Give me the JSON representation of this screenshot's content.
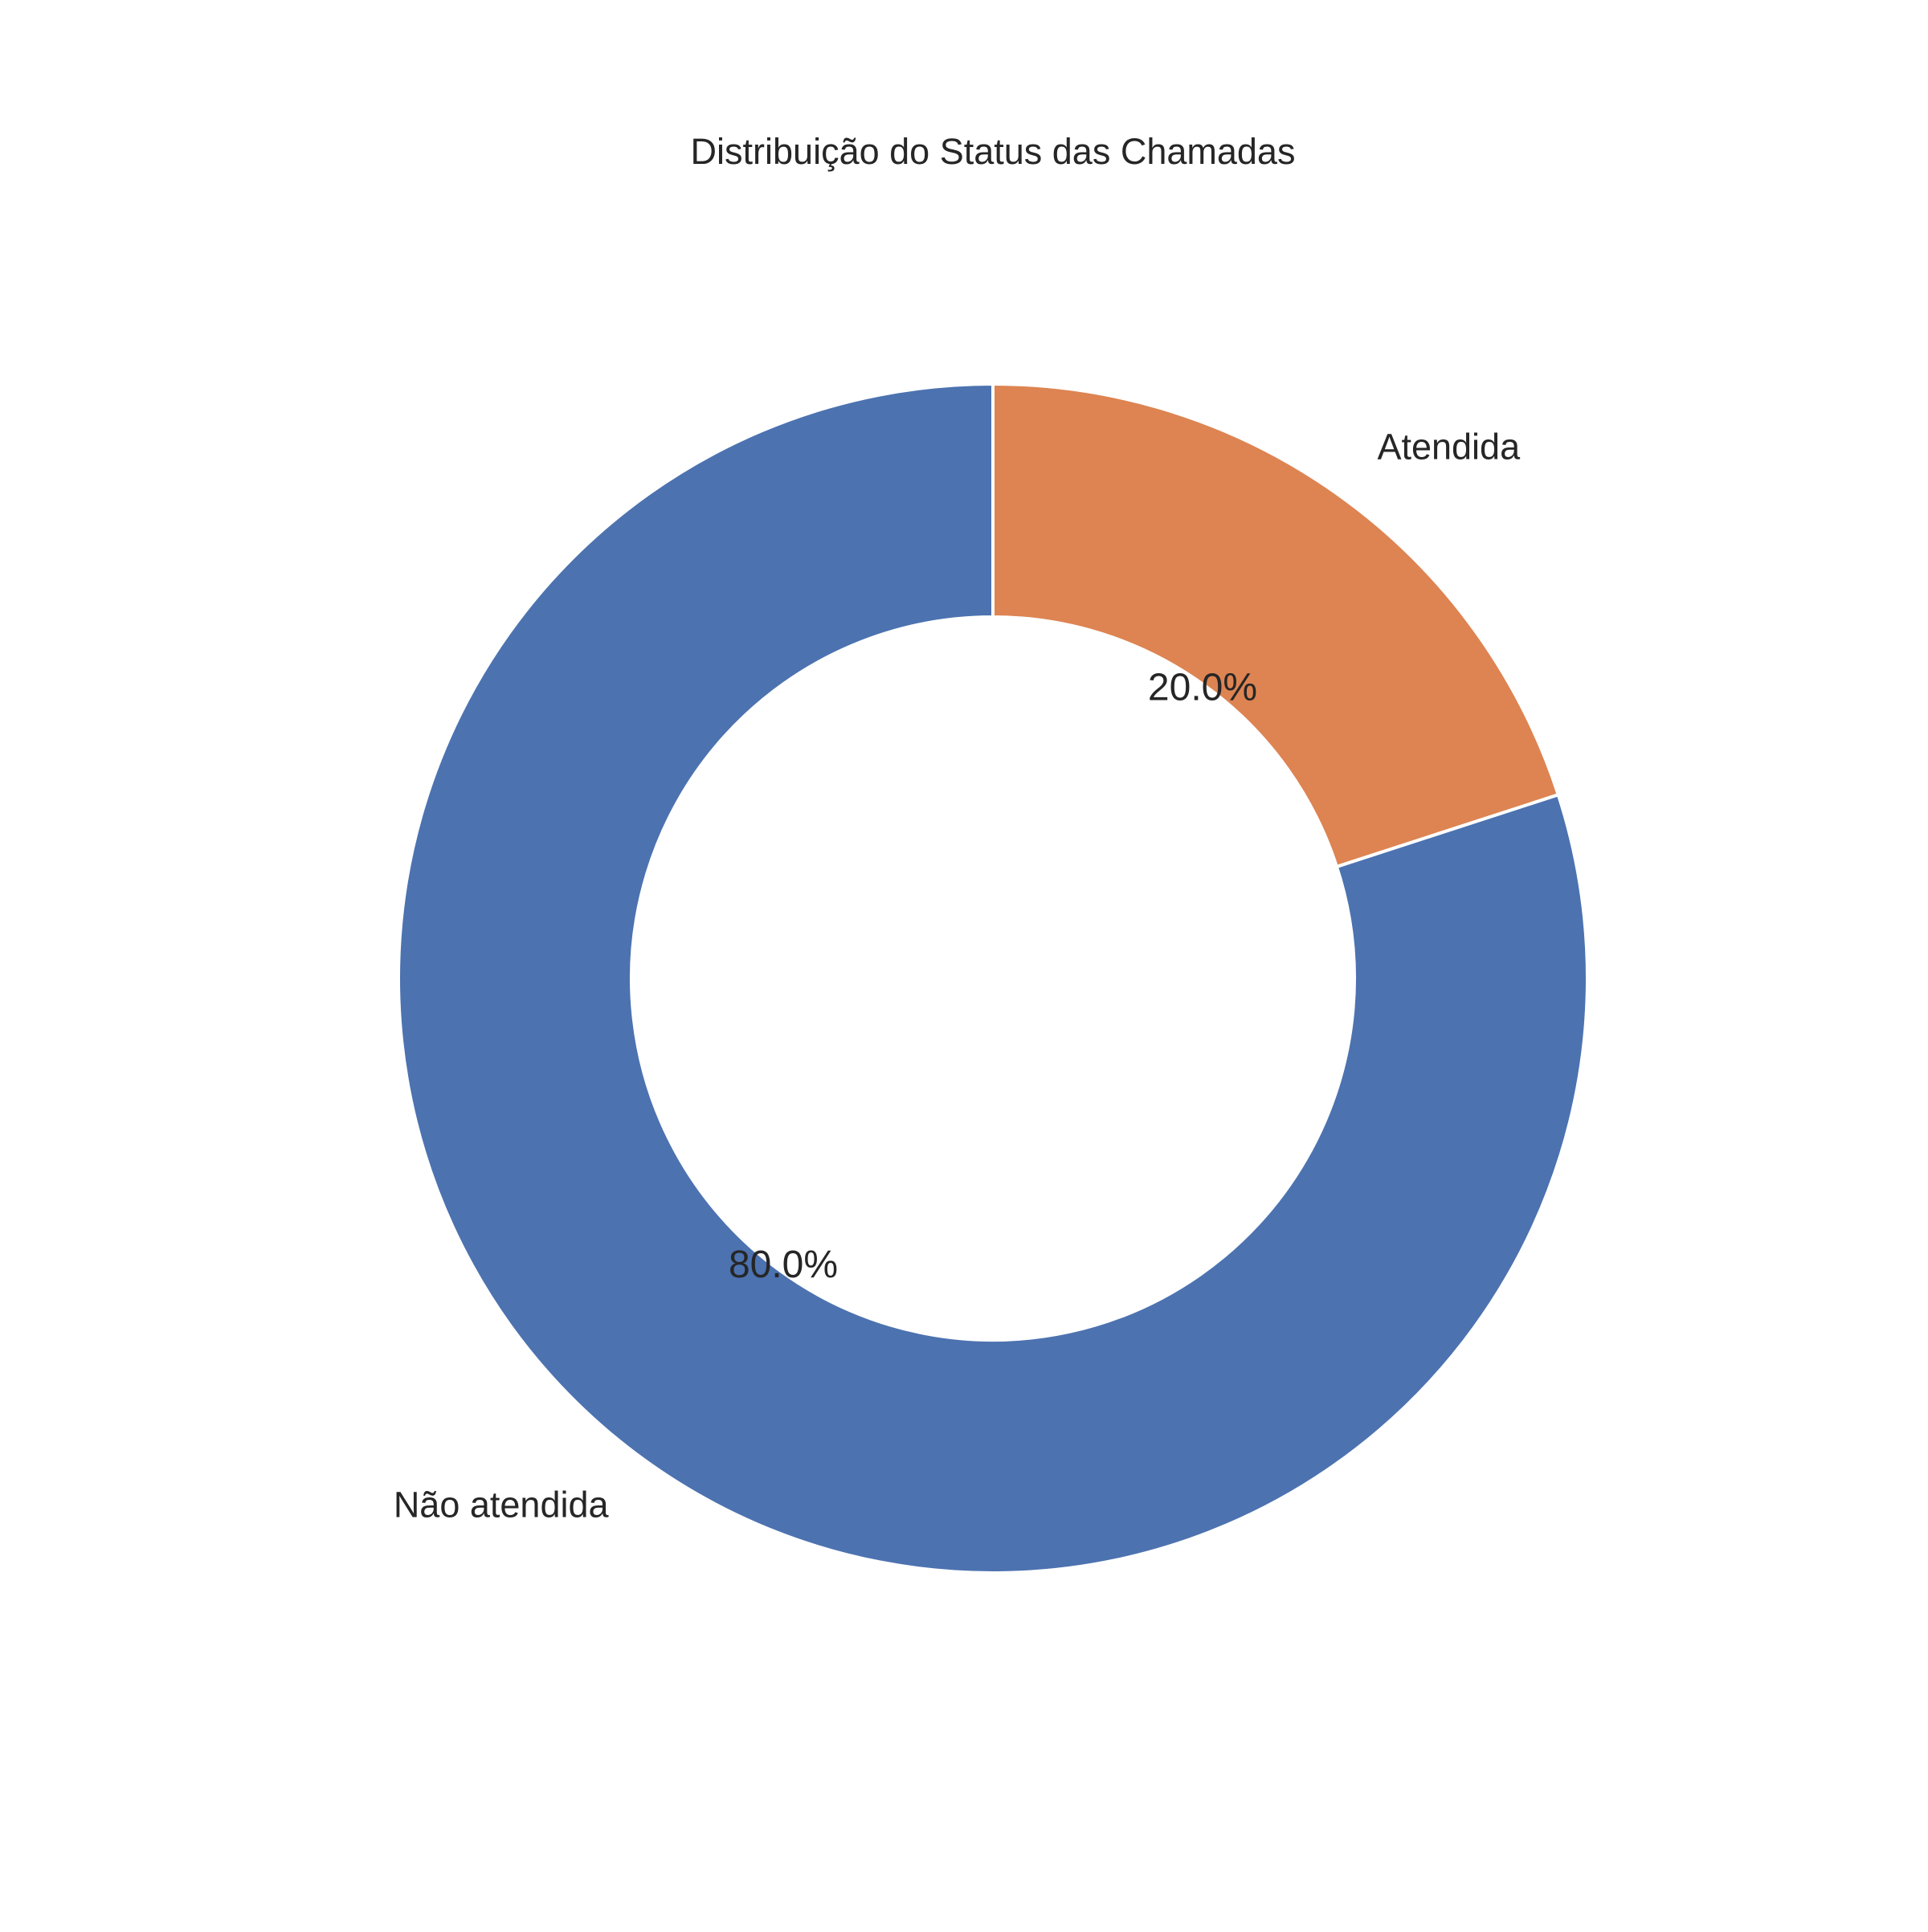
{
  "chart_data": {
    "type": "pie",
    "style": "donut",
    "title": "Distribuição do Status das Chamadas",
    "start_angle_deg": 90,
    "direction": "clockwise",
    "slices": [
      {
        "label": "Atendida",
        "value": 20.0,
        "pct_label": "20.0%",
        "color": "#dd8452"
      },
      {
        "label": "Não atendida",
        "value": 80.0,
        "pct_label": "80.0%",
        "color": "#4c72b0"
      }
    ],
    "edge_color": "#ffffff",
    "legend": "none"
  }
}
